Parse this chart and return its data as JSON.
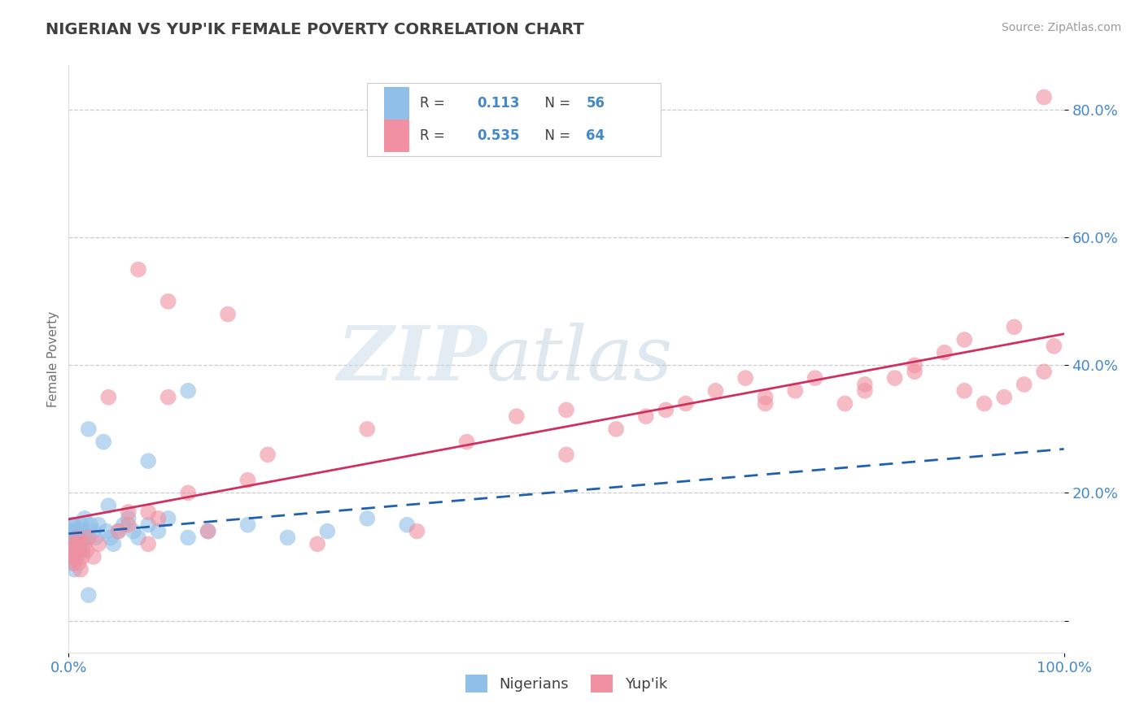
{
  "title": "NIGERIAN VS YUP'IK FEMALE POVERTY CORRELATION CHART",
  "source": "Source: ZipAtlas.com",
  "ylabel": "Female Poverty",
  "xlim": [
    0,
    1.0
  ],
  "ylim": [
    -0.05,
    0.87
  ],
  "yticks": [
    0.0,
    0.2,
    0.4,
    0.6,
    0.8
  ],
  "ytick_labels": [
    "",
    "20.0%",
    "40.0%",
    "60.0%",
    "80.0%"
  ],
  "xticks": [
    0.0,
    1.0
  ],
  "xtick_labels": [
    "0.0%",
    "100.0%"
  ],
  "watermark_zip": "ZIP",
  "watermark_atlas": "atlas",
  "nigerian_color": "#90bfe8",
  "yupik_color": "#f090a0",
  "nigerian_line_color": "#2060b0",
  "yupik_line_color": "#d03060",
  "background_color": "#ffffff",
  "grid_color": "#cccccc",
  "title_color": "#404040",
  "axis_label_color": "#707070",
  "tick_color": "#4488cc",
  "nigerian_R": 0.113,
  "yupik_R": 0.535,
  "nigerian_N": 56,
  "yupik_N": 64,
  "nigerian_x": [
    0.001,
    0.002,
    0.002,
    0.003,
    0.003,
    0.003,
    0.004,
    0.004,
    0.004,
    0.005,
    0.005,
    0.005,
    0.006,
    0.006,
    0.007,
    0.007,
    0.008,
    0.008,
    0.009,
    0.01,
    0.01,
    0.011,
    0.012,
    0.013,
    0.014,
    0.015,
    0.016,
    0.018,
    0.02,
    0.022,
    0.025,
    0.027,
    0.03,
    0.035,
    0.038,
    0.042,
    0.045,
    0.05,
    0.055,
    0.06,
    0.065,
    0.07,
    0.08,
    0.09,
    0.1,
    0.12,
    0.14,
    0.18,
    0.22,
    0.26,
    0.3,
    0.34,
    0.12,
    0.08,
    0.04,
    0.02
  ],
  "nigerian_y": [
    0.12,
    0.1,
    0.14,
    0.11,
    0.13,
    0.15,
    0.09,
    0.12,
    0.14,
    0.1,
    0.13,
    0.15,
    0.08,
    0.12,
    0.11,
    0.14,
    0.1,
    0.13,
    0.12,
    0.11,
    0.14,
    0.13,
    0.12,
    0.15,
    0.11,
    0.14,
    0.16,
    0.13,
    0.3,
    0.15,
    0.14,
    0.13,
    0.15,
    0.28,
    0.14,
    0.13,
    0.12,
    0.14,
    0.15,
    0.16,
    0.14,
    0.13,
    0.15,
    0.14,
    0.16,
    0.13,
    0.14,
    0.15,
    0.13,
    0.14,
    0.16,
    0.15,
    0.36,
    0.25,
    0.18,
    0.04
  ],
  "yupik_x": [
    0.003,
    0.004,
    0.005,
    0.006,
    0.007,
    0.008,
    0.009,
    0.01,
    0.011,
    0.012,
    0.014,
    0.016,
    0.018,
    0.02,
    0.025,
    0.03,
    0.04,
    0.05,
    0.06,
    0.07,
    0.08,
    0.09,
    0.1,
    0.12,
    0.14,
    0.16,
    0.18,
    0.2,
    0.25,
    0.3,
    0.35,
    0.4,
    0.45,
    0.5,
    0.55,
    0.58,
    0.62,
    0.65,
    0.68,
    0.7,
    0.73,
    0.75,
    0.78,
    0.8,
    0.83,
    0.85,
    0.88,
    0.9,
    0.92,
    0.94,
    0.96,
    0.98,
    0.99,
    0.06,
    0.08,
    0.1,
    0.5,
    0.6,
    0.7,
    0.8,
    0.85,
    0.9,
    0.95,
    0.98
  ],
  "yupik_y": [
    0.1,
    0.12,
    0.09,
    0.11,
    0.1,
    0.12,
    0.13,
    0.09,
    0.11,
    0.08,
    0.1,
    0.12,
    0.11,
    0.13,
    0.1,
    0.12,
    0.35,
    0.14,
    0.17,
    0.55,
    0.12,
    0.16,
    0.5,
    0.2,
    0.14,
    0.48,
    0.22,
    0.26,
    0.12,
    0.3,
    0.14,
    0.28,
    0.32,
    0.26,
    0.3,
    0.32,
    0.34,
    0.36,
    0.38,
    0.34,
    0.36,
    0.38,
    0.34,
    0.36,
    0.38,
    0.4,
    0.42,
    0.36,
    0.34,
    0.35,
    0.37,
    0.39,
    0.43,
    0.15,
    0.17,
    0.35,
    0.33,
    0.33,
    0.35,
    0.37,
    0.39,
    0.44,
    0.46,
    0.82
  ]
}
